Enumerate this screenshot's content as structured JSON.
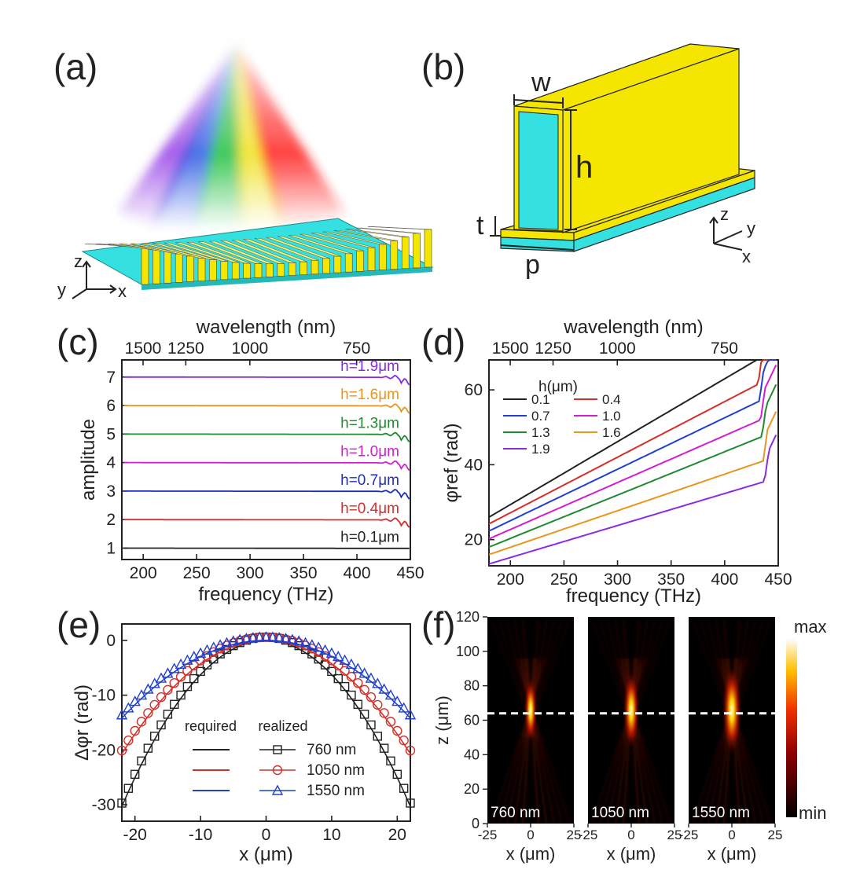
{
  "panels": {
    "a": {
      "label": "(a)",
      "axes": {
        "z": "z",
        "y": "y",
        "x": "x"
      }
    },
    "b": {
      "label": "(b)",
      "dims": {
        "w": "w",
        "h": "h",
        "t": "t",
        "p": "p"
      },
      "axes": {
        "z": "z",
        "y": "y",
        "x": "x"
      }
    },
    "c": {
      "label": "(c)"
    },
    "d": {
      "label": "(d)"
    },
    "e": {
      "label": "(e)"
    },
    "f": {
      "label": "(f)"
    }
  },
  "colors": {
    "gold": "#f5e600",
    "cyan": "#35e0e0",
    "black": "#222222",
    "red": "#d3302a",
    "blue": "#2040d0",
    "magenta": "#d020d0",
    "green": "#1f8a30",
    "orange": "#e8961e",
    "purple": "#8a2be2",
    "darkblue": "#1d2ec0"
  },
  "chart_data": [
    {
      "id": "c",
      "type": "line",
      "xlabel": "frequency (THz)",
      "x2label": "wavelength (nm)",
      "ylabel": "amplitude",
      "xlim": [
        180,
        450
      ],
      "ylim": [
        0.6,
        7.6
      ],
      "xticks": [
        200,
        250,
        300,
        350,
        400,
        450
      ],
      "yticks": [
        1,
        2,
        3,
        4,
        5,
        6,
        7
      ],
      "x2ticks": [
        1500,
        1250,
        1000,
        750
      ],
      "series": [
        {
          "name": "h=0.1μm",
          "color": "#222222",
          "offset": 1
        },
        {
          "name": "h=0.4μm",
          "color": "#d3302a",
          "offset": 2
        },
        {
          "name": "h=0.7μm",
          "color": "#1d2ec0",
          "offset": 3
        },
        {
          "name": "h=1.0μm",
          "color": "#d020d0",
          "offset": 4
        },
        {
          "name": "h=1.3μm",
          "color": "#1f8a30",
          "offset": 5
        },
        {
          "name": "h=1.6μm",
          "color": "#e8961e",
          "offset": 6
        },
        {
          "name": "h=1.9μm",
          "color": "#8a2be2",
          "offset": 7
        }
      ]
    },
    {
      "id": "d",
      "type": "line",
      "xlabel": "frequency (THz)",
      "x2label": "wavelength (nm)",
      "ylabel": "φref (rad)",
      "legend_title": "h(μm)",
      "xlim": [
        180,
        450
      ],
      "ylim": [
        13,
        68
      ],
      "xticks": [
        200,
        250,
        300,
        350,
        400,
        450
      ],
      "yticks": [
        20,
        40,
        60
      ],
      "x2ticks": [
        1500,
        1250,
        1000,
        750
      ],
      "series": [
        {
          "name": "0.1",
          "color": "#222222",
          "y_start": 26,
          "y_end": 68
        },
        {
          "name": "0.4",
          "color": "#d3302a",
          "y_start": 24.2,
          "y_end": 61.5
        },
        {
          "name": "0.7",
          "color": "#2040d0",
          "y_start": 22.3,
          "y_end": 57
        },
        {
          "name": "1.0",
          "color": "#d020d0",
          "y_start": 20.2,
          "y_end": 52
        },
        {
          "name": "1.3",
          "color": "#1f8a30",
          "y_start": 18,
          "y_end": 47.5
        },
        {
          "name": "1.6",
          "color": "#e8961e",
          "y_start": 16,
          "y_end": 41
        },
        {
          "name": "1.9",
          "color": "#8a2be2",
          "y_start": 13.5,
          "y_end": 35.5
        }
      ]
    },
    {
      "id": "e",
      "type": "line",
      "xlabel": "x (μm)",
      "ylabel": "Δφr (rad)",
      "xlim": [
        -22,
        22
      ],
      "ylim": [
        -33,
        3
      ],
      "xticks": [
        -20,
        -10,
        0,
        10,
        20
      ],
      "yticks": [
        0,
        -10,
        -20,
        -30
      ],
      "legend_headers": [
        "required",
        "realized"
      ],
      "series": [
        {
          "name": "760 nm",
          "color": "#222222",
          "marker": "square",
          "y_edge": -30.3
        },
        {
          "name": "1050 nm",
          "color": "#d3302a",
          "marker": "circle",
          "y_edge": -20.7
        },
        {
          "name": "1550 nm",
          "color": "#2040d0",
          "marker": "triangle",
          "y_edge": -14.2
        }
      ]
    },
    {
      "id": "f",
      "type": "heatmap",
      "ylabel": "z (μm)",
      "xlabel": "x (μm)",
      "ylim": [
        0,
        120
      ],
      "yticks": [
        0,
        20,
        40,
        60,
        80,
        100,
        120
      ],
      "xticks": [
        -25,
        0,
        25
      ],
      "focal_z": 64,
      "colorbar": {
        "max": "max",
        "min": "min"
      },
      "maps": [
        {
          "name": "760 nm"
        },
        {
          "name": "1050 nm"
        },
        {
          "name": "1550 nm"
        }
      ]
    }
  ]
}
